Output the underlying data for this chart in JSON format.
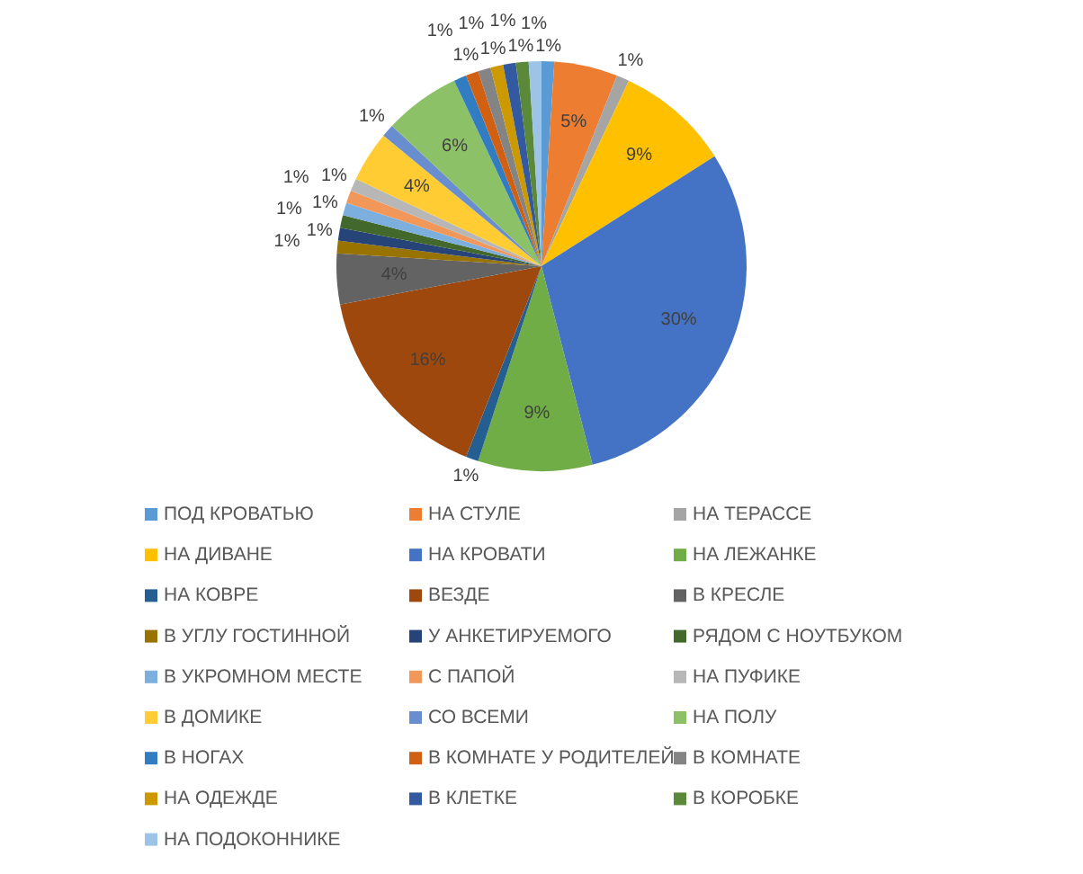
{
  "chart_data": {
    "type": "pie",
    "categories": [
      "ПОД КРОВАТЬЮ",
      "НА СТУЛЕ",
      "НА ТЕРАССЕ",
      "НА ДИВАНЕ",
      "НА КРОВАТИ",
      "НА ЛЕЖАНКЕ",
      "НА КОВРЕ",
      "ВЕЗДЕ",
      "В КРЕСЛЕ",
      "В УГЛУ  ГОСТИННОЙ",
      "У АНКЕТИРУЕМОГО",
      "РЯДОМ С НОУТБУКОМ",
      "В УКРОМНОМ МЕСТЕ",
      "С ПАПОЙ",
      "НА ПУФИКЕ",
      "В ДОМИКЕ",
      "СО ВСЕМИ",
      "НА ПОЛУ",
      "В НОГАХ",
      "В КОМНАТЕ У РОДИТЕЛЕЙ",
      "В КОМНАТЕ",
      "НА ОДЕЖДЕ",
      "В КЛЕТКЕ",
      "В КОРОБКЕ",
      "НА ПОДОКОННИКЕ"
    ],
    "values": [
      1,
      5,
      1,
      9,
      30,
      9,
      1,
      16,
      4,
      1,
      1,
      1,
      1,
      1,
      1,
      4,
      1,
      6,
      1,
      1,
      1,
      1,
      1,
      1,
      1
    ],
    "value_labels": [
      "1%",
      "5%",
      "1%",
      "9%",
      "30%",
      "9%",
      "1%",
      "16%",
      "4%",
      "1%",
      "1%",
      "1%",
      "1%",
      "1%",
      "1%",
      "4%",
      "1%",
      "6%",
      "1%",
      "1%",
      "1%",
      "1%",
      "1%",
      "1%",
      "1%"
    ],
    "colors": [
      "#5b9bd5",
      "#ed7d31",
      "#a5a5a5",
      "#ffc000",
      "#4472c4",
      "#70ad47",
      "#255e91",
      "#9e480e",
      "#636363",
      "#997300",
      "#264478",
      "#43682b",
      "#7cafdd",
      "#f1975a",
      "#b7b7b7",
      "#ffcd33",
      "#698ed0",
      "#8cc168",
      "#327dc2",
      "#d26012",
      "#848484",
      "#cc9a00",
      "#335aa1",
      "#5a8a39",
      "#9dc3e6"
    ],
    "legend": "bottom"
  }
}
